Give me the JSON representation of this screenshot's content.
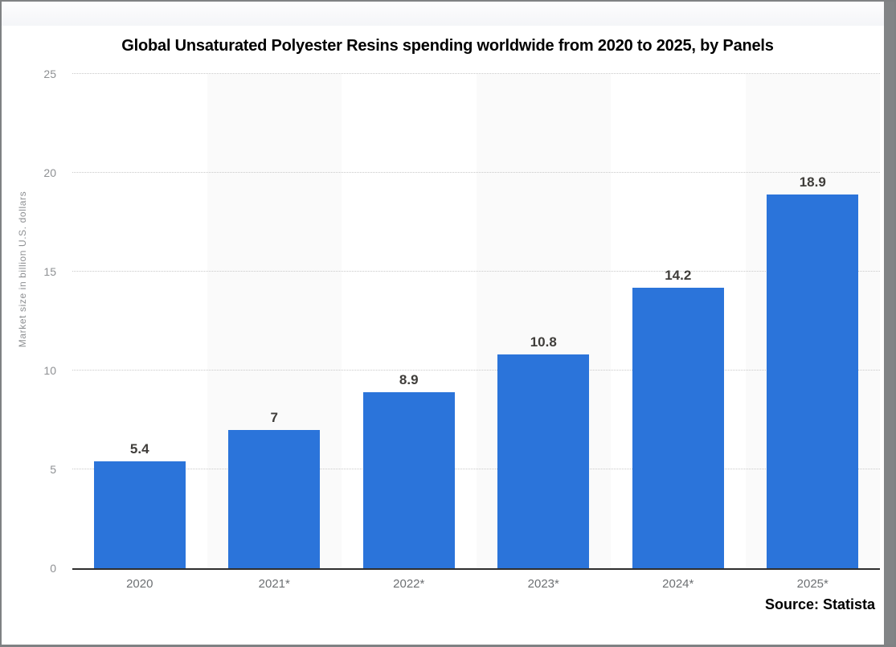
{
  "window": {
    "source_label": "Source: Statista"
  },
  "chart_data": {
    "type": "bar",
    "title": "Global Unsaturated Polyester Resins spending worldwide from 2020 to 2025, by Panels",
    "categories": [
      "2020",
      "2021*",
      "2022*",
      "2023*",
      "2024*",
      "2025*"
    ],
    "values": [
      5.4,
      7,
      8.9,
      10.8,
      14.2,
      18.9
    ],
    "value_labels": [
      "5.4",
      "7",
      "8.9",
      "10.8",
      "14.2",
      "18.9"
    ],
    "xlabel": "",
    "ylabel": "Market size in billion U.S. dollars",
    "ylim": [
      0,
      25
    ],
    "yticks": [
      0,
      5,
      10,
      15,
      20,
      25
    ],
    "grid": "horizontal dotted",
    "legend": "none",
    "bar_color": "#2b74da",
    "stripe_color": "#fafafa",
    "value_label_color": "#3f3d3a",
    "axis_text_color": "#8e9093",
    "x_label_color": "#6d7073"
  }
}
